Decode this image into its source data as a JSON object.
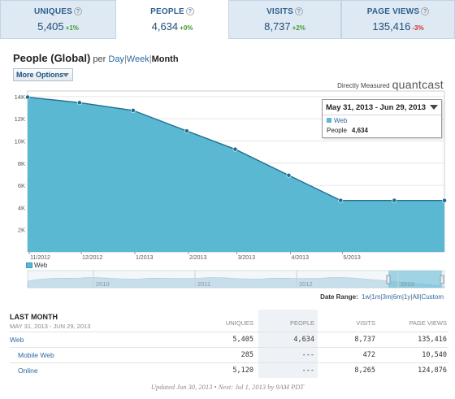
{
  "tabs": [
    {
      "label": "UNIQUES",
      "value": "5,405",
      "change": "+1%",
      "trend": "pos",
      "active": false
    },
    {
      "label": "PEOPLE",
      "value": "4,634",
      "change": "+0%",
      "trend": "pos",
      "active": true
    },
    {
      "label": "VISITS",
      "value": "8,737",
      "change": "+2%",
      "trend": "pos",
      "active": false
    },
    {
      "label": "PAGE VIEWS",
      "value": "135,416",
      "change": "-3%",
      "trend": "neg",
      "active": false
    }
  ],
  "help_glyph": "?",
  "heading": {
    "title": "People (Global)",
    "per": "per",
    "periods": [
      "Day",
      "Week",
      "Month"
    ],
    "separator": "|",
    "selected_period": "Month"
  },
  "more_options": "More Options",
  "measured": {
    "text": "Directly Measured",
    "brand": "quantcast"
  },
  "chart_data": {
    "type": "area",
    "x": [
      "10/31/2012",
      "11/30/2012",
      "12/31/2012",
      "1/31/2013",
      "2/28/2013",
      "3/31/2013",
      "4/30/2013",
      "5/31/2013",
      "6/29/2013"
    ],
    "series": [
      {
        "name": "Web",
        "values": [
          13950,
          13450,
          12750,
          10900,
          9250,
          6900,
          4640,
          4640,
          4634
        ]
      }
    ],
    "x_tick_labels": [
      "11/2012",
      "12/2012",
      "1/2013",
      "2/2013",
      "3/2013",
      "4/2013",
      "5/2013"
    ],
    "y_tick_labels": [
      "2K",
      "4K",
      "6K",
      "8K",
      "10K",
      "12K",
      "14K"
    ],
    "ylim": [
      0,
      14500
    ],
    "grid": true,
    "legend": "bottom-left",
    "colors": {
      "fill": "#5bb8d2",
      "line": "#1e6f8d",
      "marker": "#1e6f8d"
    }
  },
  "navigator": {
    "years": [
      "2010",
      "2011",
      "2012",
      "2013"
    ]
  },
  "date_range": {
    "label": "Date Range:",
    "options": [
      "1w",
      "1m",
      "3m",
      "6m",
      "1y",
      "All",
      "Custom"
    ],
    "separator": "|"
  },
  "tooltip": {
    "range": "May 31, 2013 - Jun 29, 2013",
    "series": "Web",
    "metric": "People",
    "value": "4,634"
  },
  "table": {
    "title": "LAST MONTH",
    "date_range": "MAY 31, 2013 - JUN 29, 2013",
    "columns": [
      "UNIQUES",
      "PEOPLE",
      "VISITS",
      "PAGE VIEWS"
    ],
    "rows": [
      {
        "name": "Web",
        "values": [
          "5,405",
          "4,634",
          "8,737",
          "135,416"
        ]
      },
      {
        "name": "Mobile Web",
        "values": [
          "285",
          "---",
          "472",
          "10,540"
        ]
      },
      {
        "name": "Online",
        "values": [
          "5,120",
          "---",
          "8,265",
          "124,876"
        ]
      }
    ]
  },
  "footer": "Updated Jun 30, 2013 • Next: Jul 1, 2013 by 9AM PDT"
}
